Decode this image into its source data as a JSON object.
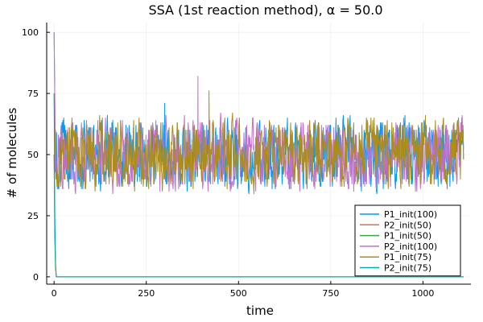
{
  "chart_data": {
    "type": "line",
    "title": "SSA (1st reaction method), α = 50.0",
    "xlabel": "time",
    "ylabel": "# of molecules",
    "xlim": [
      -20,
      1130
    ],
    "ylim": [
      -3,
      104
    ],
    "xticks": [
      0,
      250,
      500,
      750,
      1000
    ],
    "yticks": [
      0,
      25,
      50,
      75,
      100
    ],
    "x_tick_labels": [
      "0",
      "250",
      "500",
      "750",
      "1000"
    ],
    "y_tick_labels": [
      "0",
      "25",
      "50",
      "75",
      "100"
    ],
    "grid": true,
    "legend_position": "bottom-right",
    "x_end": 1110,
    "series": [
      {
        "name": "P1_init(100)",
        "color": "#009af9",
        "start": 100,
        "steady": 50,
        "fluctuation": 8,
        "min": 21,
        "max": 71
      },
      {
        "name": "P2_init(50)",
        "color": "#e26f46",
        "start": 50,
        "steady": 0,
        "fluctuation": 0
      },
      {
        "name": "P1_init(50)",
        "color": "#3da44d",
        "start": 50,
        "steady": 0,
        "fluctuation": 0
      },
      {
        "name": "P2_init(100)",
        "color": "#c271d2",
        "start": 100,
        "steady": 50,
        "fluctuation": 8,
        "min": 29,
        "max": 82
      },
      {
        "name": "P1_init(75)",
        "color": "#ac8d18",
        "start": 75,
        "steady": 50,
        "fluctuation": 8,
        "min": 24,
        "max": 76
      },
      {
        "name": "P2_init(75)",
        "color": "#00a9ad",
        "start": 75,
        "steady": 0,
        "fluctuation": 0
      }
    ]
  }
}
